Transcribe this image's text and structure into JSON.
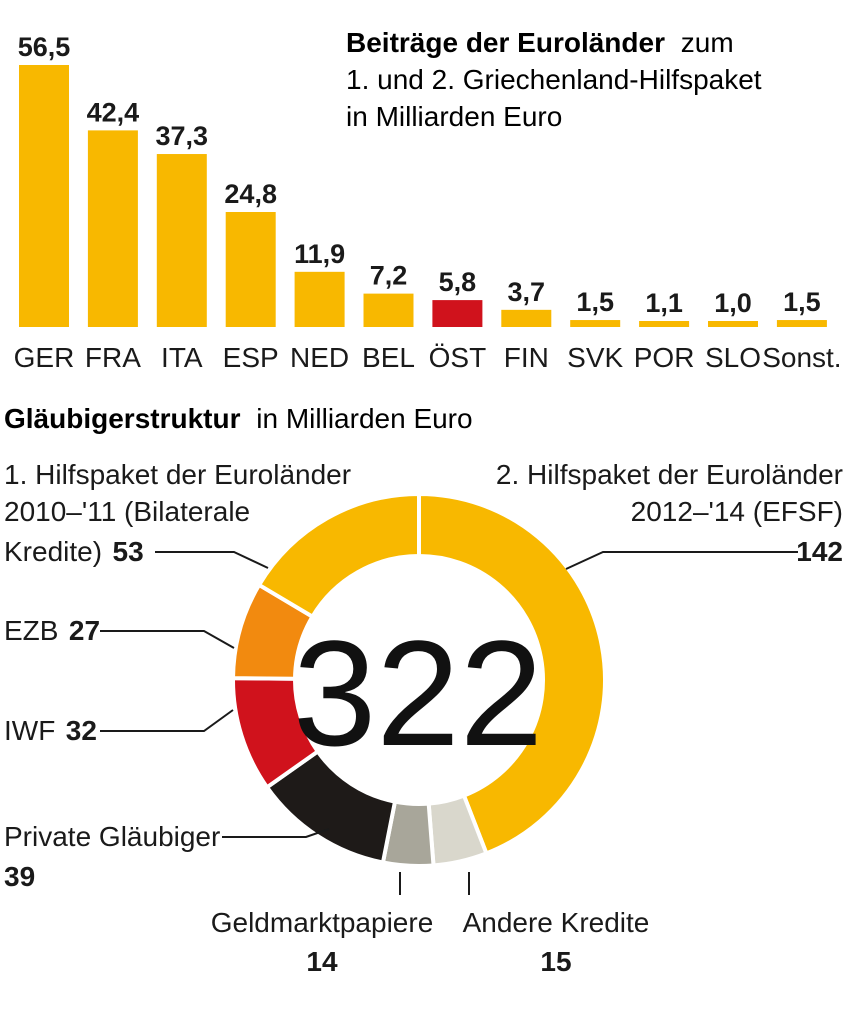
{
  "colors": {
    "main": "#F8B800",
    "highlight": "#D0121C",
    "ezb": "#F28A0F",
    "iwf": "#D0121C",
    "private": "#1E1A18",
    "geldmarkt": "#A8A69A",
    "andere": "#D9D7CC"
  },
  "chart_data": [
    {
      "type": "bar",
      "title": "Beiträge der Euroländer",
      "subtitle_part1": "zum",
      "subtitle_line2": "1. und 2. Griechenland-Hilfspaket",
      "subtitle_line3": "in Milliarden Euro",
      "categories": [
        "GER",
        "FRA",
        "ITA",
        "ESP",
        "NED",
        "BEL",
        "ÖST",
        "FIN",
        "SVK",
        "POR",
        "SLO",
        "Sonst."
      ],
      "values": [
        56.5,
        42.4,
        37.3,
        24.8,
        11.9,
        7.2,
        5.8,
        3.7,
        1.5,
        1.1,
        1.0,
        1.5
      ],
      "value_labels": [
        "56,5",
        "42,4",
        "37,3",
        "24,8",
        "11,9",
        "7,2",
        "5,8",
        "3,7",
        "1,5",
        "1,1",
        "1,0",
        "1,5"
      ],
      "highlight_category": "ÖST",
      "ylim": [
        0,
        56.5
      ],
      "grid": false
    },
    {
      "type": "pie",
      "title": "Gläubigerstruktur",
      "title_suffix": "in Milliarden Euro",
      "total_label": "322",
      "slices": [
        {
          "key": "efsf",
          "value": 142,
          "value_label": "142",
          "label_lines": [
            "2. Hilfspaket der Euroländer",
            "2012–'14 (EFSF)"
          ]
        },
        {
          "key": "andere",
          "value": 15,
          "value_label": "15",
          "label_lines": [
            "Andere Kredite"
          ]
        },
        {
          "key": "geldmarkt",
          "value": 14,
          "value_label": "14",
          "label_lines": [
            "Geldmarktpapiere"
          ]
        },
        {
          "key": "private",
          "value": 39,
          "value_label": "39",
          "label_lines": [
            "Private Gläubiger"
          ]
        },
        {
          "key": "iwf",
          "value": 32,
          "value_label": "32",
          "label_lines": [
            "IWF"
          ]
        },
        {
          "key": "ezb",
          "value": 27,
          "value_label": "27",
          "label_lines": [
            "EZB"
          ]
        },
        {
          "key": "bilateral",
          "value": 53,
          "value_label": "53",
          "label_lines": [
            "1. Hilfspaket der Euroländer",
            "2010–'11 (Bilaterale",
            "Kredite)"
          ]
        }
      ]
    }
  ]
}
